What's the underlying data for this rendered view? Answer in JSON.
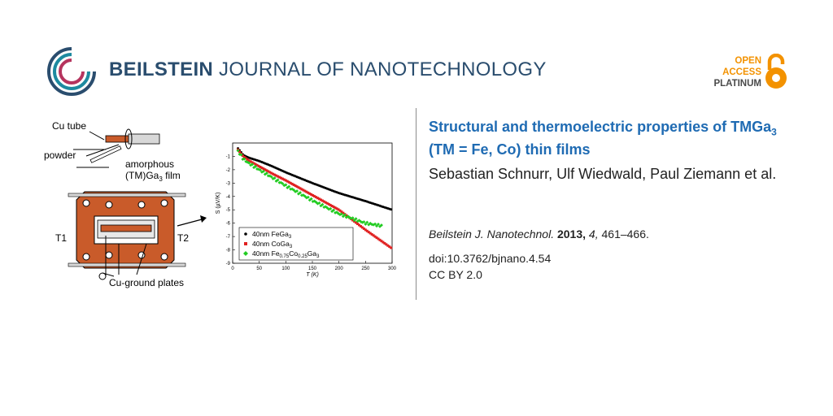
{
  "header": {
    "journal_bold": "BEILSTEIN",
    "journal_rest": " JOURNAL OF NANOTECHNOLOGY",
    "oa_line1": "OPEN",
    "oa_line2": "ACCESS",
    "oa_line3": "PLATINUM",
    "colors": {
      "navy": "#2a4d6e",
      "teal": "#1d8aa0",
      "magenta": "#b5345e",
      "orange": "#f39200",
      "title_blue": "#1f6bb3"
    }
  },
  "article": {
    "title_part1": "Structural and thermoelectric properties of TMGa",
    "title_sub": "3",
    "title_part2": " (TM = Fe, Co) thin films",
    "authors": "Sebastian Schnurr, Ulf Wiedwald, Paul Ziemann et al.",
    "journal_abbrev": "Beilstein J. Nanotechnol.",
    "year": "2013,",
    "volume": "4,",
    "pages": "461–466.",
    "doi": "doi:10.3762/bjnano.4.54",
    "license": "CC BY 2.0"
  },
  "schematic": {
    "cu_tube": "Cu tube",
    "powder": "powder",
    "amorphous": "amorphous",
    "film_pre": "(TM)Ga",
    "film_sub": "3",
    "film_post": " film",
    "t1": "T1",
    "t2": "T2",
    "ground": "Cu-ground plates",
    "icons": [
      "lens-icon",
      "arrow-icon"
    ]
  },
  "chart_data": {
    "type": "scatter",
    "xlabel": "T (K)",
    "ylabel": "S (µV/K)",
    "xlim": [
      0,
      300
    ],
    "ylim": [
      -9,
      0
    ],
    "xticks": [
      0,
      50,
      100,
      150,
      200,
      250,
      300
    ],
    "yticks": [
      -1,
      -2,
      -3,
      -4,
      -5,
      -6,
      -7,
      -8,
      -9
    ],
    "legend_placement": "bottom-left",
    "series": [
      {
        "name": "40nm FeGa3",
        "color": "#000000",
        "marker": "circle",
        "x": [
          10,
          20,
          30,
          50,
          75,
          100,
          150,
          200,
          250,
          300
        ],
        "y": [
          -0.4,
          -0.9,
          -1.1,
          -1.35,
          -1.75,
          -2.2,
          -3.0,
          -3.75,
          -4.35,
          -5.0
        ]
      },
      {
        "name": "40nm CoGa3",
        "color": "#e02020",
        "marker": "square",
        "x": [
          10,
          20,
          30,
          50,
          75,
          100,
          150,
          200,
          250,
          300
        ],
        "y": [
          -0.5,
          -1.0,
          -1.3,
          -1.75,
          -2.3,
          -2.8,
          -3.9,
          -5.0,
          -6.5,
          -7.9
        ]
      },
      {
        "name": "40nm Fe0.75Co0.25Ga3",
        "color": "#22cc22",
        "marker": "diamond",
        "x": [
          10,
          20,
          30,
          50,
          75,
          100,
          150,
          200,
          250,
          280
        ],
        "y": [
          -0.6,
          -1.2,
          -1.5,
          -2.0,
          -2.6,
          -3.2,
          -4.3,
          -5.3,
          -6.0,
          -6.2
        ]
      }
    ]
  }
}
